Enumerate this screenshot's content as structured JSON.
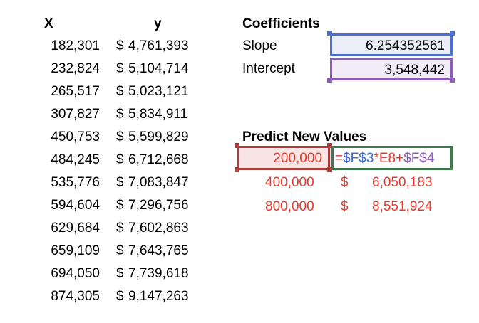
{
  "table": {
    "header_x": "X",
    "header_y": "y",
    "rows": [
      {
        "x": "182,301",
        "dollar": "$",
        "y": "4,761,393"
      },
      {
        "x": "232,824",
        "dollar": "$",
        "y": "5,104,714"
      },
      {
        "x": "265,517",
        "dollar": "$",
        "y": "5,023,121"
      },
      {
        "x": "307,827",
        "dollar": "$",
        "y": "5,834,911"
      },
      {
        "x": "450,753",
        "dollar": "$",
        "y": "5,599,829"
      },
      {
        "x": "484,245",
        "dollar": "$",
        "y": "6,712,668"
      },
      {
        "x": "535,776",
        "dollar": "$",
        "y": "7,083,847"
      },
      {
        "x": "594,604",
        "dollar": "$",
        "y": "7,296,756"
      },
      {
        "x": "629,684",
        "dollar": "$",
        "y": "7,602,863"
      },
      {
        "x": "659,109",
        "dollar": "$",
        "y": "7,643,765"
      },
      {
        "x": "694,050",
        "dollar": "$",
        "y": "7,739,618"
      },
      {
        "x": "874,305",
        "dollar": "$",
        "y": "9,147,263"
      }
    ]
  },
  "coefficients": {
    "title": "Coefficients",
    "slope_label": "Slope",
    "slope_value": "6.254352561",
    "intercept_label": "Intercept",
    "intercept_value": "3,548,442"
  },
  "predict": {
    "title": "Predict New Values",
    "formula": {
      "eq": "=",
      "ref1": "$F$3",
      "op1": "*",
      "ref_x": "E8",
      "op2": "+",
      "ref2": "$F$4"
    },
    "rows": [
      {
        "x": "200,000"
      },
      {
        "x": "400,000",
        "dollar": "$",
        "y": "6,050,183"
      },
      {
        "x": "800,000",
        "dollar": "$",
        "y": "8,551,924"
      }
    ]
  },
  "colors": {
    "blue_ref": "#4a6fd0",
    "purple_ref": "#8d5bbe",
    "red_ref": "#b03a3a",
    "green_ref": "#3d7a4e",
    "red_text": "#e23b2e"
  }
}
